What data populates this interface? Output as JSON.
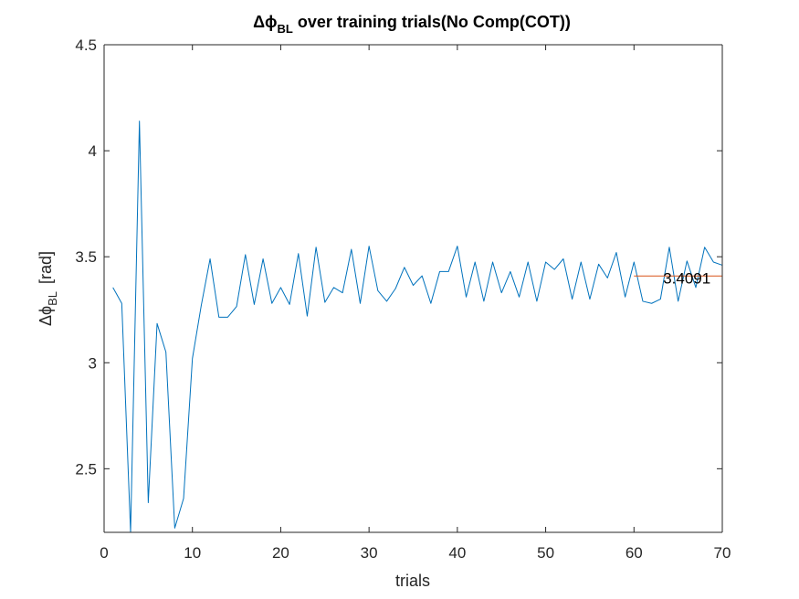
{
  "chart_data": {
    "type": "line",
    "title_prefix": "Δϕ",
    "title_subscript": "BL",
    "title_suffix": " over training trials(No Comp(COT))",
    "xlabel": "trials",
    "ylabel_prefix": "Δϕ",
    "ylabel_subscript": "BL",
    "ylabel_suffix": "[rad]",
    "xlim": [
      0,
      70
    ],
    "ylim": [
      2.2,
      4.5
    ],
    "xticks": [
      0,
      10,
      20,
      30,
      40,
      50,
      60,
      70
    ],
    "yticks": [
      2.5,
      3,
      3.5,
      4,
      4.5
    ],
    "ytick_labels": [
      "2.5",
      "3",
      "3.5",
      "4",
      "4.5"
    ],
    "grid": false,
    "series": [
      {
        "name": "delta-phi-BL",
        "color": "#0072BD",
        "x": [
          1,
          2,
          3,
          4,
          5,
          6,
          7,
          8,
          9,
          10,
          11,
          12,
          13,
          14,
          15,
          16,
          17,
          18,
          19,
          20,
          21,
          22,
          23,
          24,
          25,
          26,
          27,
          28,
          29,
          30,
          31,
          32,
          33,
          34,
          35,
          36,
          37,
          38,
          39,
          40,
          41,
          42,
          43,
          44,
          45,
          46,
          47,
          48,
          49,
          50,
          51,
          52,
          53,
          54,
          55,
          56,
          57,
          58,
          59,
          60,
          61,
          62,
          63,
          64,
          65,
          66,
          67,
          68,
          69,
          70
        ],
        "values": [
          3.355,
          3.28,
          2.2,
          4.14,
          2.34,
          3.185,
          3.05,
          2.22,
          2.36,
          3.02,
          3.27,
          3.49,
          3.215,
          3.215,
          3.265,
          3.51,
          3.275,
          3.49,
          3.28,
          3.355,
          3.275,
          3.515,
          3.22,
          3.545,
          3.285,
          3.355,
          3.33,
          3.535,
          3.28,
          3.55,
          3.34,
          3.29,
          3.35,
          3.45,
          3.365,
          3.41,
          3.28,
          3.43,
          3.43,
          3.55,
          3.31,
          3.475,
          3.29,
          3.475,
          3.33,
          3.43,
          3.31,
          3.475,
          3.29,
          3.475,
          3.44,
          3.49,
          3.3,
          3.475,
          3.3,
          3.465,
          3.4,
          3.52,
          3.31,
          3.475,
          3.29,
          3.28,
          3.3,
          3.545,
          3.29,
          3.48,
          3.355,
          3.545,
          3.475,
          3.46
        ]
      }
    ],
    "mean_line": {
      "x": [
        60,
        70
      ],
      "value": 3.4091,
      "color": "#D95319",
      "label": "3.4091",
      "label_x": 63.3
    }
  }
}
